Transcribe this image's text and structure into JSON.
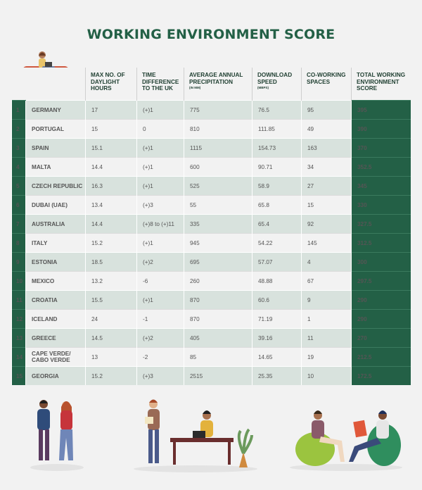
{
  "title": "WORKING ENVIRONMENT SCORE",
  "headers": {
    "daylight": "MAX NO. OF DAYLIGHT HOURS",
    "time_diff": "TIME DIFFERENCE TO THE UK",
    "precip": "AVERAGE ANNUAL PRECIPITATION",
    "precip_unit": "(IN MM)",
    "download": "DOWNLOAD SPEED",
    "download_unit": "(MBPS)",
    "coworking": "CO-WORKING SPACES",
    "total": "TOTAL WORKING ENVIRONMENT SCORE"
  },
  "rows": [
    {
      "rank": "1",
      "country": "GERMANY",
      "daylight": "17",
      "time_diff": "(+)1",
      "precip": "775",
      "download": "76.5",
      "coworking": "95",
      "total": "395"
    },
    {
      "rank": "2",
      "country": "PORTUGAL",
      "daylight": "15",
      "time_diff": "0",
      "precip": "810",
      "download": "111.85",
      "coworking": "49",
      "total": "390"
    },
    {
      "rank": "3",
      "country": "SPAIN",
      "daylight": "15.1",
      "time_diff": "(+)1",
      "precip": "1115",
      "download": "154.73",
      "coworking": "163",
      "total": "370"
    },
    {
      "rank": "4",
      "country": "MALTA",
      "daylight": "14.4",
      "time_diff": "(+)1",
      "precip": "600",
      "download": "90.71",
      "coworking": "34",
      "total": "352.5"
    },
    {
      "rank": "5",
      "country": "CZECH REPUBLIC",
      "daylight": "16.3",
      "time_diff": "(+)1",
      "precip": "525",
      "download": "58.9",
      "coworking": "27",
      "total": "345"
    },
    {
      "rank": "6",
      "country": "DUBAI (UAE)",
      "daylight": "13.4",
      "time_diff": "(+)3",
      "precip": "55",
      "download": "65.8",
      "coworking": "15",
      "total": "330"
    },
    {
      "rank": "7",
      "country": "AUSTRALIA",
      "daylight": "14.4",
      "time_diff": "(+)8 to (+)11",
      "precip": "335",
      "download": "65.4",
      "coworking": "92",
      "total": "327.5"
    },
    {
      "rank": "8",
      "country": "ITALY",
      "daylight": "15.2",
      "time_diff": "(+)1",
      "precip": "945",
      "download": "54.22",
      "coworking": "145",
      "total": "312.5"
    },
    {
      "rank": "9",
      "country": "ESTONIA",
      "daylight": "18.5",
      "time_diff": "(+)2",
      "precip": "695",
      "download": "57.07",
      "coworking": "4",
      "total": "300"
    },
    {
      "rank": "10",
      "country": "MEXICO",
      "daylight": "13.2",
      "time_diff": "-6",
      "precip": "260",
      "download": "48.88",
      "coworking": "67",
      "total": "297.5"
    },
    {
      "rank": "11",
      "country": "CROATIA",
      "daylight": "15.5",
      "time_diff": "(+)1",
      "precip": "870",
      "download": "60.6",
      "coworking": "9",
      "total": "290"
    },
    {
      "rank": "12",
      "country": "ICELAND",
      "daylight": "24",
      "time_diff": "-1",
      "precip": "870",
      "download": "71.19",
      "coworking": "1",
      "total": "290"
    },
    {
      "rank": "13",
      "country": "GREECE",
      "daylight": "14.5",
      "time_diff": "(+)2",
      "precip": "405",
      "download": "39.16",
      "coworking": "11",
      "total": "270"
    },
    {
      "rank": "14",
      "country": "CAPE VERDE/ CABO VERDE",
      "daylight": "13",
      "time_diff": "-2",
      "precip": "85",
      "download": "14.65",
      "coworking": "19",
      "total": "212.5"
    },
    {
      "rank": "15",
      "country": "GEORGIA",
      "daylight": "15.2",
      "time_diff": "(+)3",
      "precip": "2515",
      "download": "25.35",
      "coworking": "10",
      "total": "172.5"
    }
  ],
  "colors": {
    "brand_green": "#236046",
    "row_tint": "#d8e2dd",
    "background": "#f2f2f2"
  },
  "illustrations": [
    "person-on-sofa-illustration",
    "two-people-chatting-illustration",
    "desk-workers-illustration",
    "beanbag-meeting-illustration"
  ]
}
